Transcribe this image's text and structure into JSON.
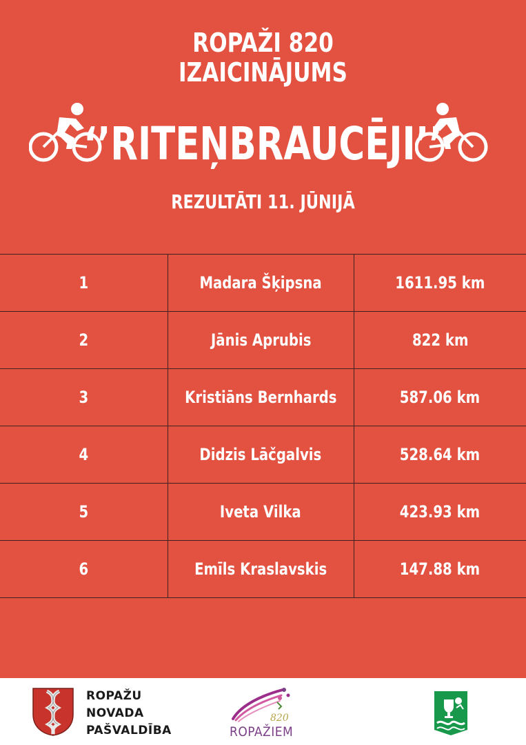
{
  "header": {
    "line1": "ROPAŽI 820",
    "line2": "IZAICINĀJUMS",
    "title": "‘’RITEŅBRAUCĒJI’’",
    "subtitle": "REZULTĀTI 11. JŪNIJĀ",
    "icons": [
      "cyclist-icon",
      "cyclist-icon"
    ]
  },
  "results": [
    {
      "rank": "1",
      "name": "Madara Šķipsna",
      "distance": "1611.95 km"
    },
    {
      "rank": "2",
      "name": "Jānis Aprubis",
      "distance": "822 km"
    },
    {
      "rank": "3",
      "name": "Kristiāns Bernhards",
      "distance": "587.06 km"
    },
    {
      "rank": "4",
      "name": "Didzis Lāčgalvis",
      "distance": "528.64 km"
    },
    {
      "rank": "5",
      "name": "Iveta Vilka",
      "distance": "423.93 km"
    },
    {
      "rank": "6",
      "name": "Emīls Kraslavskis",
      "distance": "147.88 km"
    }
  ],
  "footer": {
    "org_line1": "ROPAŽU",
    "org_line2": "NOVADA",
    "org_line3": "PAŠVALDĪBA",
    "logo_number": "820",
    "logo_name": "ROPAŽIEM"
  },
  "colors": {
    "background": "#e35141",
    "text": "#ffffff",
    "grid": "#3a2220",
    "footer_bg": "#ffffff",
    "shield_green": "#17984a"
  }
}
